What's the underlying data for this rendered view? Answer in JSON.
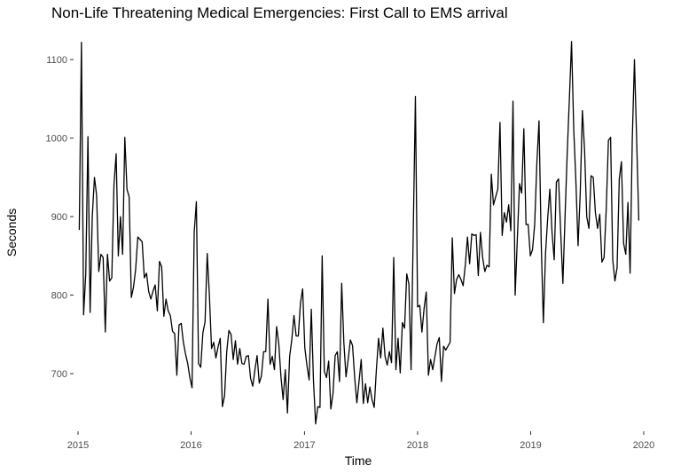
{
  "chart_data": {
    "type": "line",
    "title": "Non-Life Threatening Medical Emergencies: First Call to EMS arrival",
    "xlabel": "Time",
    "ylabel": "Seconds",
    "x_ticks": [
      "2015",
      "2016",
      "2017",
      "2018",
      "2019",
      "2020"
    ],
    "y_ticks": [
      "700",
      "800",
      "900",
      "1000",
      "1100"
    ],
    "xlim": [
      "2015-01-01",
      "2020-01-01"
    ],
    "ylim": [
      630,
      1125
    ],
    "grid": false,
    "series": [
      {
        "x_start": "2015-01-05",
        "interval_days": 7,
        "values": [
          883,
          1122,
          775,
          827,
          1002,
          778,
          900,
          950,
          927,
          830,
          852,
          848,
          753,
          852,
          818,
          822,
          940,
          980,
          850,
          900,
          852,
          1001,
          935,
          925,
          797,
          810,
          833,
          874,
          871,
          868,
          822,
          828,
          805,
          795,
          805,
          813,
          780,
          843,
          836,
          773,
          795,
          780,
          774,
          754,
          751,
          698,
          762,
          764,
          740,
          725,
          713,
          695,
          682,
          880,
          919,
          713,
          708,
          752,
          766,
          853,
          800,
          732,
          740,
          720,
          734,
          745,
          658,
          672,
          728,
          755,
          750,
          718,
          742,
          712,
          732,
          713,
          712,
          722,
          723,
          694,
          684,
          705,
          723,
          688,
          697,
          728,
          728,
          795,
          712,
          722,
          705,
          760,
          738,
          696,
          667,
          705,
          650,
          722,
          743,
          774,
          748,
          748,
          790,
          808,
          733,
          710,
          692,
          782,
          690,
          636,
          658,
          657,
          850,
          703,
          695,
          716,
          655,
          675,
          723,
          728,
          690,
          815,
          740,
          696,
          718,
          743,
          736,
          695,
          663,
          690,
          718,
          662,
          687,
          663,
          683,
          667,
          657,
          705,
          745,
          720,
          758,
          722,
          711,
          728,
          714,
          848,
          705,
          745,
          701,
          765,
          758,
          827,
          814,
          705,
          880,
          1053,
          785,
          787,
          753,
          783,
          804,
          698,
          718,
          705,
          722,
          738,
          746,
          690,
          735,
          730,
          735,
          740,
          873,
          802,
          820,
          826,
          820,
          812,
          838,
          874,
          840,
          878,
          876,
          877,
          825,
          880,
          848,
          830,
          838,
          836,
          954,
          915,
          925,
          935,
          1020,
          876,
          905,
          893,
          915,
          882,
          1047,
          800,
          872,
          942,
          930,
          1012,
          890,
          890,
          850,
          858,
          890,
          968,
          1022,
          868,
          765,
          853,
          898,
          935,
          880,
          845,
          944,
          948,
          880,
          815,
          900,
          981,
          1050,
          1123,
          1012,
          945,
          863,
          930,
          1035,
          985,
          900,
          885,
          952,
          950,
          905,
          885,
          903,
          842,
          848,
          910,
          997,
          1001,
          845,
          818,
          835,
          948,
          970,
          866,
          852,
          918,
          828,
          998,
          1100,
          1000,
          895
        ]
      }
    ]
  }
}
